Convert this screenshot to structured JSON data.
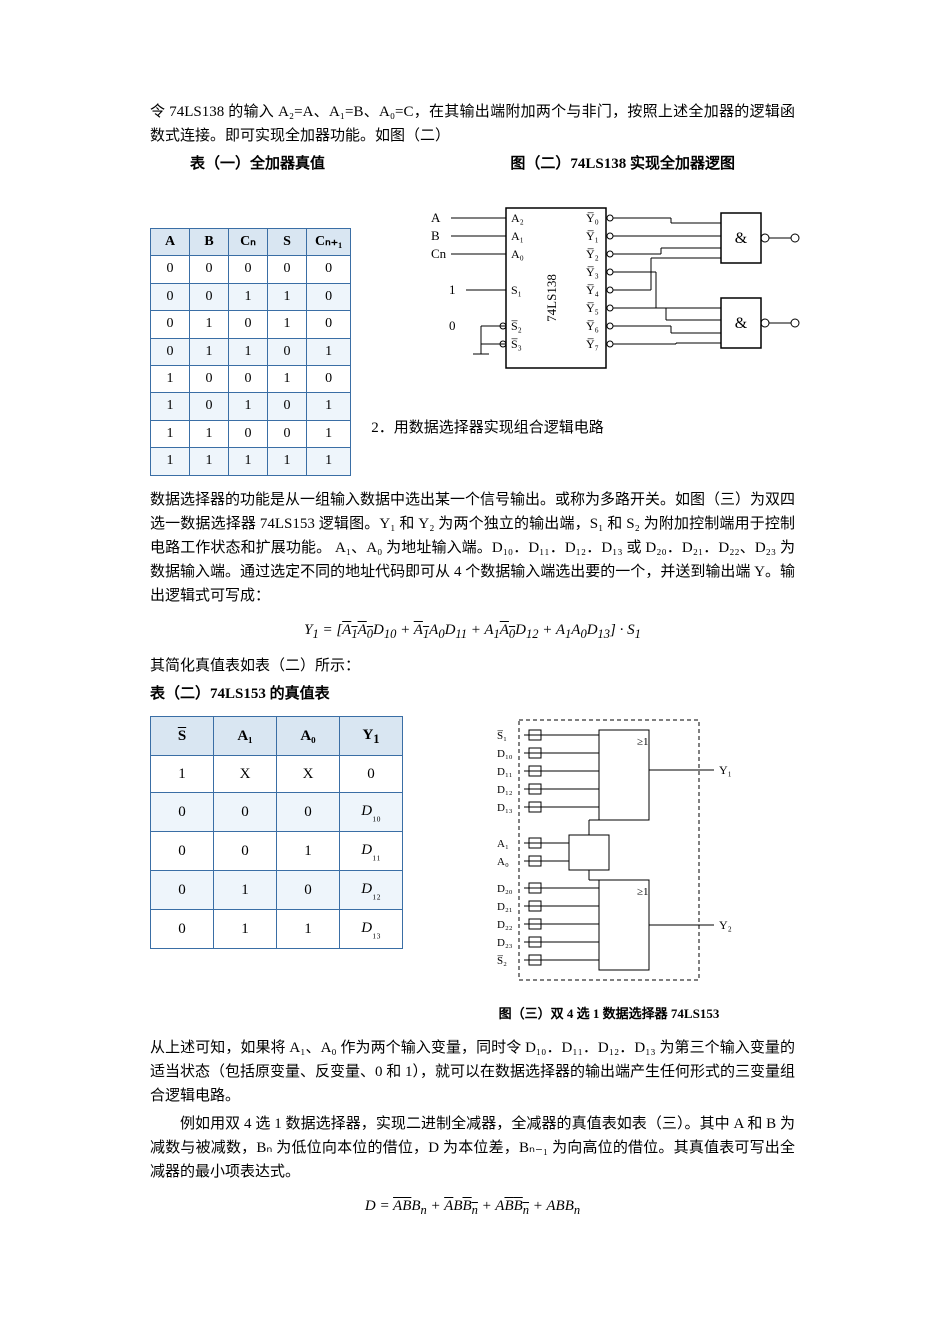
{
  "intro1": "令 74LS138 的输入 A₂=A、A₁=B、A₀=C，在其输出端附加两个与非门，按照上述全加器的逻辑函数式连接。即可实现全加器功能。如图（二）",
  "caption1_left": "表（一）全加器真值",
  "caption1_right": "图（二）74LS138 实现全加器逻图",
  "table1": {
    "headers": [
      "A",
      "B",
      "Cₙ",
      "S",
      "Cₙ₊₁"
    ],
    "rows": [
      [
        "0",
        "0",
        "0",
        "0",
        "0"
      ],
      [
        "0",
        "0",
        "1",
        "1",
        "0"
      ],
      [
        "0",
        "1",
        "0",
        "1",
        "0"
      ],
      [
        "0",
        "1",
        "1",
        "0",
        "1"
      ],
      [
        "1",
        "0",
        "0",
        "1",
        "0"
      ],
      [
        "1",
        "0",
        "1",
        "0",
        "1"
      ],
      [
        "1",
        "1",
        "0",
        "0",
        "1"
      ],
      [
        "1",
        "1",
        "1",
        "1",
        "1"
      ]
    ]
  },
  "diagram1": {
    "inputs_left": [
      "A",
      "B",
      "Cn",
      "1",
      "0"
    ],
    "pins_left": [
      "A₂",
      "A₁",
      "A₀",
      "S₁",
      "S̅₂",
      "S̅₃"
    ],
    "chip": "74LS138",
    "outputs": [
      "Y̅₀",
      "Y̅₁",
      "Y̅₂",
      "Y̅₃",
      "Y̅₄",
      "Y̅₅",
      "Y̅₆",
      "Y̅₇"
    ],
    "gate": "&"
  },
  "section2_title": "2．用数据选择器实现组合逻辑电路",
  "para2a": "数据选择器的功能是从一组输入数据中选出某一个信号输出。或称为多路开关。如图（三）为双四选一数据选择器 74LS153 逻辑图。Y₁ 和 Y₂ 为两个独立的输出端，S₁ 和 S₂ 为附加控制端用于控制电路工作状态和扩展功能。 A₁、A₀ 为地址输入端。D₁₀．D₁₁．D₁₂．D₁₃ 或 D₂₀．D₂₁．D₂₂、D₂₃ 为数据输入端。通过选定不同的地址代码即可从 4 个数据输入端选出要的一个，并送到输出端 Y。输出逻辑式可写成：",
  "equation1_html": "Y<sub>1</sub> = [<span class='ov'>A<sub>1</sub>A<sub>0</sub></span>D<sub>10</sub> + <span class='ov'>A<sub>1</sub></span>A<sub>0</sub>D<sub>11</sub> + A<sub>1</sub><span class='ov'>A<sub>0</sub></span>D<sub>12</sub> + A<sub>1</sub>A<sub>0</sub>D<sub>13</sub>] · S<sub>1</sub>",
  "para2b": "其简化真值表如表（二）所示：",
  "caption2": "表（二）74LS153 的真值表",
  "table2": {
    "headers": [
      "S̅",
      "A₁",
      "A₀",
      "Y₁"
    ],
    "rows": [
      [
        "1",
        "X",
        "X",
        "0"
      ],
      [
        "0",
        "0",
        "0",
        "D₁₀"
      ],
      [
        "0",
        "0",
        "1",
        "D₁₁"
      ],
      [
        "0",
        "1",
        "0",
        "D₁₂"
      ],
      [
        "0",
        "1",
        "1",
        "D₁₃"
      ]
    ]
  },
  "diagram2": {
    "top_labels": [
      "S̅₁",
      "D₁₀",
      "D₁₁",
      "D₁₂",
      "D₁₃"
    ],
    "mid_labels": [
      "A₁",
      "A₀"
    ],
    "bot_labels": [
      "D₂₀",
      "D₂₁",
      "D₂₂",
      "D₂₃",
      "S̅₂"
    ],
    "out1": "Y₁",
    "out2": "Y₂",
    "caption": "图（三）双 4 选 1 数据选择器 74LS153"
  },
  "para3": "从上述可知，如果将 A₁、A₀ 作为两个输入变量，同时令 D₁₀．D₁₁．D₁₂．D₁₃ 为第三个输入变量的适当状态（包括原变量、反变量、0 和 1），就可以在数据选择器的输出端产生任何形式的三变量组合逻辑电路。",
  "para4": "例如用双 4 选 1 数据选择器，实现二进制全减器，全减器的真值表如表（三）。其中 A 和 B 为减数与被减数，Bₙ 为低位向本位的借位，D 为本位差，Bₙ₋₁ 为向高位的借位。其真值表可写出全减器的最小项表达式。",
  "equation2_html": "D = <span class='ov'>AB</span>B<sub>n</sub> + <span class='ov'>A</span>B<span class='ov'>B<sub>n</sub></span> + A<span class='ov'>B</span><span class='ov'>B<sub>n</sub></span> + ABB<sub>n</sub>"
}
